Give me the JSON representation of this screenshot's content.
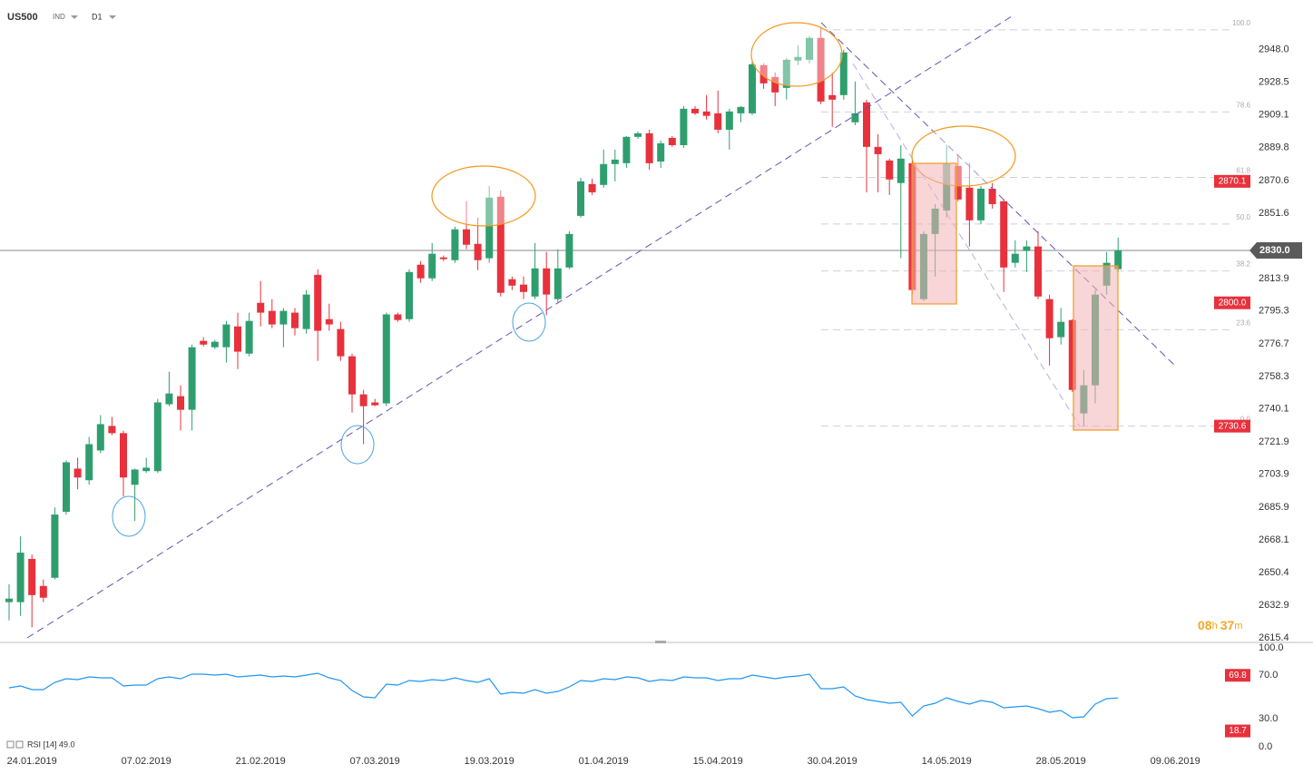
{
  "chart_data": [
    {
      "type": "candlestick",
      "title": "US500",
      "instrument_type": "IND",
      "timeframe": "D1",
      "log_scale": true,
      "up_color": "#2f9e6e",
      "down_color": "#e8313c",
      "categories": [
        null,
        null,
        "24.01.2019",
        null,
        null,
        null,
        null,
        null,
        null,
        null,
        null,
        null,
        "07.02.2019",
        null,
        null,
        null,
        null,
        null,
        null,
        null,
        null,
        null,
        "21.02.2019",
        null,
        null,
        null,
        null,
        null,
        null,
        null,
        null,
        null,
        "07.03.2019",
        null,
        null,
        null,
        null,
        null,
        null,
        null,
        null,
        null,
        "19.03.2019",
        null,
        null,
        null,
        null,
        null,
        null,
        null,
        null,
        null,
        "01.04.2019",
        null,
        null,
        null,
        null,
        null,
        null,
        null,
        null,
        null,
        "15.04.2019",
        null,
        null,
        null,
        null,
        null,
        null,
        null,
        null,
        null,
        "30.04.2019",
        null,
        null,
        null,
        null,
        null,
        null,
        null,
        null,
        null,
        "14.05.2019",
        null,
        null,
        null,
        null,
        null,
        null,
        null,
        null,
        null,
        "28.05.2019",
        null,
        null,
        null,
        null,
        null,
        null,
        null,
        null,
        null,
        "09.06.2019"
      ],
      "open": [
        2634.5,
        2634.5,
        2657.8,
        2643.2,
        2647.6,
        2683.4,
        2707.1,
        2700.7,
        2717.1,
        2730.7,
        2726.7,
        2698.2,
        2705.7,
        2705.7,
        2742.8,
        2747.3,
        2739.7,
        2778.4,
        2774.8,
        2774.8,
        2786.6,
        2771.2,
        2800.0,
        2795.4,
        2787.7,
        2794.4,
        2785.1,
        2816.0,
        2790.7,
        2785.1,
        2769.7,
        2748.3,
        2743.8,
        2743.3,
        2793.4,
        2790.7,
        2821.8,
        2814.0,
        2826.0,
        2824.4,
        2842.2,
        2833.8,
        2825.5,
        2861.1,
        2813.5,
        2810.4,
        2803.6,
        2819.7,
        2802.1,
        2820.2,
        2850.0,
        2868.5,
        2868.0,
        2880.2,
        2880.7,
        2896.2,
        2898.3,
        2881.7,
        2895.6,
        2891.3,
        2912.8,
        2911.2,
        2910.1,
        2900.4,
        2910.1,
        2910.1,
        2938.8,
        2931.7,
        2925.2,
        2941.5,
        2942.0,
        2955.1,
        2920.9,
        2920.9,
        2904.8,
        2916.6,
        2890.3,
        2882.3,
        2869.1,
        2880.7,
        2802.1,
        2839.5,
        2853.1,
        2879.1,
        2866.4,
        2847.4,
        2865.8,
        2858.5,
        2822.9,
        2829.7,
        2832.3,
        2802.1,
        2780.5,
        2790.2,
        2737.7,
        2753.4,
        2809.8,
        2819.2,
        null,
        null,
        null,
        null,
        null
      ],
      "high": [
        2644.2,
        2670.0,
        2660.2,
        2646.7,
        2685.8,
        2711.6,
        2713.1,
        2724.6,
        2736.7,
        2735.7,
        2728.0,
        2707.1,
        2713.1,
        2745.8,
        2761.0,
        2753.4,
        2776.3,
        2780.5,
        2779.0,
        2789.7,
        2794.4,
        2794.4,
        2812.4,
        2802.1,
        2797.0,
        2797.0,
        2807.3,
        2819.2,
        2799.5,
        2789.2,
        2771.2,
        2750.8,
        2745.8,
        2794.4,
        2794.4,
        2819.2,
        2823.9,
        2834.3,
        2827.1,
        2843.7,
        2858.5,
        2849.0,
        2867.4,
        2864.8,
        2815.0,
        2815.0,
        2834.3,
        2829.2,
        2830.7,
        2841.1,
        2872.2,
        2871.7,
        2888.7,
        2888.7,
        2896.7,
        2899.4,
        2900.4,
        2894.0,
        2896.7,
        2914.4,
        2914.4,
        2920.9,
        2923.6,
        2912.8,
        2914.4,
        2940.9,
        2939.9,
        2934.4,
        2943.1,
        2950.7,
        2956.2,
        2961.6,
        2934.4,
        2948.0,
        2929.0,
        2918.2,
        2897.8,
        2883.4,
        2891.3,
        2883.4,
        2841.1,
        2856.8,
        2891.3,
        2886.0,
        2880.7,
        2867.4,
        2869.1,
        2859.5,
        2835.9,
        2835.9,
        2841.1,
        2804.7,
        2797.0,
        2790.7,
        2762.0,
        2807.3,
        2829.2,
        2837.5,
        null,
        null,
        null,
        null,
        null
      ],
      "low": [
        2624.8,
        2627.2,
        2621.0,
        2634.5,
        2646.7,
        2681.9,
        2695.7,
        2698.2,
        2715.6,
        2725.6,
        2691.8,
        2678.4,
        2704.7,
        2704.7,
        2741.7,
        2728.2,
        2728.2,
        2775.3,
        2773.8,
        2766.1,
        2762.5,
        2769.7,
        2786.6,
        2785.6,
        2774.8,
        2781.5,
        2782.5,
        2767.1,
        2784.1,
        2767.1,
        2738.2,
        2720.6,
        2741.7,
        2741.7,
        2789.2,
        2789.2,
        2811.4,
        2812.4,
        2823.9,
        2822.9,
        2830.7,
        2818.7,
        2822.9,
        2803.6,
        2807.3,
        2802.1,
        2802.1,
        2792.9,
        2800.5,
        2819.2,
        2849.0,
        2862.2,
        2866.4,
        2870.1,
        2878.0,
        2895.1,
        2876.9,
        2878.0,
        2890.3,
        2889.7,
        2909.1,
        2906.4,
        2898.3,
        2888.7,
        2904.8,
        2909.1,
        2924.7,
        2914.4,
        2918.2,
        2938.8,
        2939.9,
        2915.5,
        2902.1,
        2918.2,
        2903.1,
        2863.7,
        2863.7,
        2862.2,
        2825.5,
        2804.7,
        2801.0,
        2815.0,
        2849.0,
        2858.5,
        2832.3,
        2845.3,
        2854.2,
        2806.2,
        2820.2,
        2817.6,
        2802.1,
        2764.5,
        2776.3,
        2749.7,
        2730.7,
        2743.3,
        2804.7,
        2817.6,
        null,
        null,
        null,
        null,
        null
      ],
      "close": [
        2636.4,
        2661.2,
        2638.3,
        2636.9,
        2681.9,
        2710.6,
        2702.2,
        2720.6,
        2731.7,
        2726.7,
        2702.2,
        2706.6,
        2707.6,
        2743.8,
        2748.8,
        2739.7,
        2774.8,
        2776.3,
        2777.9,
        2787.7,
        2772.3,
        2789.7,
        2794.4,
        2787.7,
        2795.4,
        2785.6,
        2804.7,
        2784.1,
        2787.7,
        2769.7,
        2748.3,
        2741.7,
        2742.2,
        2793.4,
        2790.2,
        2817.6,
        2814.0,
        2828.1,
        2825.0,
        2842.2,
        2833.3,
        2824.4,
        2860.6,
        2805.7,
        2809.8,
        2806.2,
        2819.7,
        2804.7,
        2819.7,
        2839.5,
        2870.1,
        2863.7,
        2880.2,
        2882.8,
        2896.2,
        2898.3,
        2880.7,
        2892.4,
        2891.3,
        2912.8,
        2910.1,
        2908.6,
        2900.4,
        2911.2,
        2913.9,
        2939.3,
        2927.9,
        2922.5,
        2942.0,
        2943.7,
        2955.1,
        2917.1,
        2918.2,
        2946.4,
        2910.1,
        2890.3,
        2886.0,
        2871.2,
        2883.4,
        2807.3,
        2839.5,
        2854.2,
        2880.7,
        2859.5,
        2847.4,
        2865.8,
        2856.8,
        2820.2,
        2828.1,
        2832.3,
        2803.6,
        2779.9,
        2789.2,
        2750.8,
        2753.4,
        2804.7,
        2822.9,
        2830.2,
        null,
        null,
        null,
        null,
        null
      ],
      "ylim": [
        2613.0,
        2978.0
      ],
      "yticks": [
        {
          "value": 2948,
          "label": "2948.0"
        },
        2928.5,
        2909.1,
        2889.8,
        2870.6,
        2851.6,
        2813.9,
        2795.3,
        2776.7,
        2758.3,
        2740.1,
        2721.9,
        2703.9,
        2685.9,
        2668.1,
        2650.4,
        2632.9,
        2615.4
      ],
      "levels": [
        2870.1,
        {
          "value": 2800,
          "label": "2800.0"
        },
        2730.6
      ],
      "level_color": "#e8313c",
      "current_price": {
        "value": 2830,
        "label": "2830.0"
      },
      "fibonacci": {
        "high": 2960.0,
        "low": 2730.6,
        "levels": [
          {
            "value": 100,
            "label": "100.0"
          },
          78.6,
          61.8,
          {
            "value": 50,
            "label": "50.0"
          },
          38.2,
          23.6,
          {
            "value": 0,
            "label": "0.0"
          }
        ]
      },
      "countdown": {
        "hours": "08",
        "hours_unit": "h",
        "minutes": "37",
        "minutes_unit": "m"
      }
    },
    {
      "type": "line",
      "title": "RSI [14] 49.0",
      "color": "#2196f3",
      "values": [
        58.3,
        60.0,
        56.7,
        56.7,
        63.3,
        66.7,
        65.8,
        68.3,
        67.5,
        67.5,
        60.0,
        60.8,
        60.8,
        66.7,
        68.3,
        66.7,
        70.8,
        70.8,
        70.0,
        70.8,
        68.3,
        69.2,
        70.0,
        68.3,
        69.2,
        68.3,
        70.0,
        71.7,
        67.5,
        65.0,
        55.8,
        50.0,
        49.2,
        61.7,
        60.8,
        65.0,
        64.2,
        65.8,
        65.0,
        67.5,
        65.0,
        63.3,
        66.7,
        52.5,
        54.2,
        53.3,
        56.7,
        53.3,
        55.0,
        59.2,
        65.0,
        64.2,
        66.7,
        65.8,
        68.3,
        67.5,
        64.2,
        65.8,
        65.0,
        68.3,
        67.5,
        67.5,
        65.0,
        66.7,
        66.7,
        70.0,
        68.3,
        66.7,
        68.3,
        69.2,
        70.8,
        57.5,
        57.5,
        59.2,
        50.8,
        47.5,
        45.8,
        44.2,
        45.0,
        32.5,
        41.7,
        44.2,
        49.2,
        45.8,
        43.3,
        46.7,
        45.0,
        40.0,
        40.8,
        41.7,
        39.2,
        35.8,
        37.5,
        30.8,
        31.7,
        43.3,
        48.3,
        49.0,
        null,
        null,
        null,
        null,
        null
      ],
      "ylim": [
        0,
        100
      ],
      "yticks": [
        {
          "value": 100,
          "label": "100.0"
        },
        {
          "value": 70,
          "label": "70.0"
        },
        {
          "value": 30,
          "label": "30.0"
        },
        {
          "value": 0,
          "label": "0.0"
        }
      ],
      "levels": [
        69.8,
        18.7
      ],
      "level_color": "#e8313c"
    }
  ]
}
